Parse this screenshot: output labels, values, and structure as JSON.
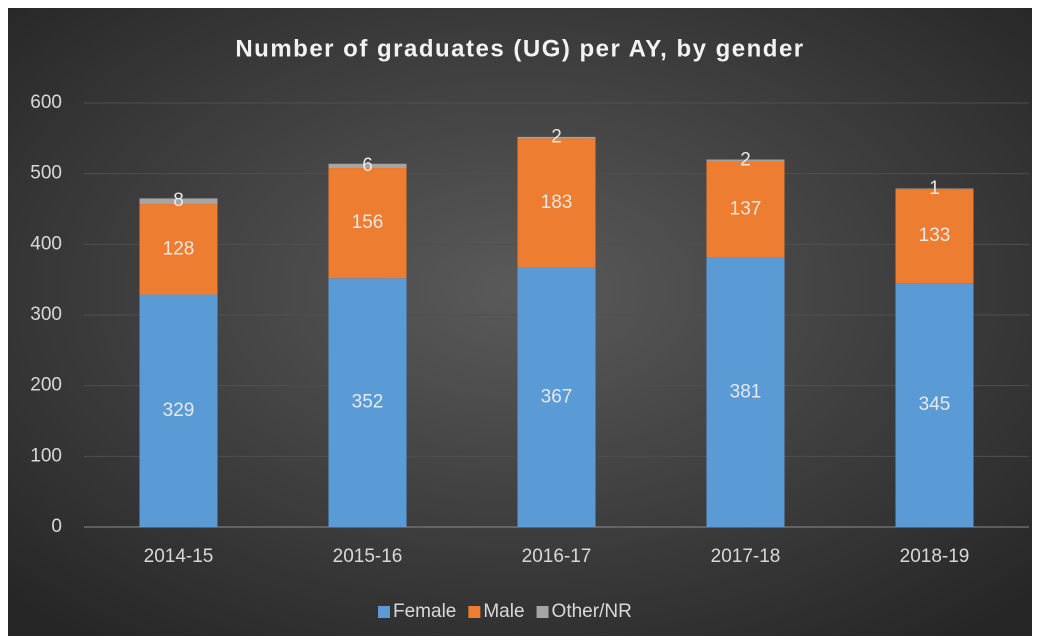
{
  "chart_data": {
    "type": "stacked_bar",
    "title": "Number of graduates (UG) per AY, by gender",
    "categories": [
      "2014-15",
      "2015-16",
      "2016-17",
      "2017-18",
      "2018-19"
    ],
    "series": [
      {
        "name": "Female",
        "color": "#5b9bd5",
        "values": [
          329,
          352,
          367,
          381,
          345
        ]
      },
      {
        "name": "Male",
        "color": "#ed7d31",
        "values": [
          128,
          156,
          183,
          137,
          133
        ]
      },
      {
        "name": "Other/NR",
        "color": "#a5a5a5",
        "values": [
          8,
          6,
          2,
          2,
          1
        ]
      }
    ],
    "ylim": [
      0,
      600
    ],
    "yticks": [
      0,
      100,
      200,
      300,
      400,
      500,
      600
    ],
    "grid": true,
    "legend": "bottom"
  }
}
